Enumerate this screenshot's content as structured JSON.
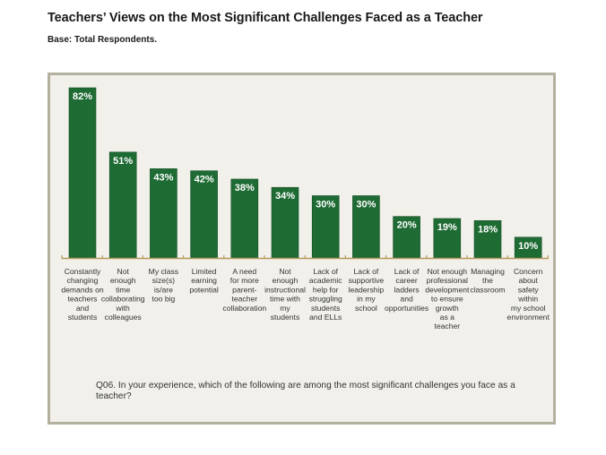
{
  "header": {
    "title": "Teachers’ Views on the Most Significant Challenges Faced as a Teacher",
    "subtitle": "Base: Total Respondents."
  },
  "footer": {
    "question": "Q06. In your experience, which of the following are among the most significant challenges you face as a teacher?"
  },
  "colors": {
    "bar": "#1e6b34",
    "bar_edge": "#174f28",
    "axis": "#b79a5d",
    "panel_bg": "#f1f0ea",
    "panel_border": "#b3b09e"
  },
  "chart_data": {
    "type": "bar",
    "categories": [
      [
        "Constantly",
        "changing",
        "demands on",
        "teachers",
        "and",
        "students"
      ],
      [
        "Not",
        "enough",
        "time",
        "collaborating",
        "with",
        "colleagues"
      ],
      [
        "My class",
        "size(s)",
        "is/are",
        "too big"
      ],
      [
        "Limited",
        "earning",
        "potential"
      ],
      [
        "A need",
        "for more",
        "parent-",
        "teacher",
        "collaboration"
      ],
      [
        "Not",
        "enough",
        "instructional",
        "time with",
        "my",
        "students"
      ],
      [
        "Lack of",
        "academic",
        "help for",
        "struggling",
        "students",
        "and ELLs"
      ],
      [
        "Lack of",
        "supportive",
        "leadership",
        "in my",
        "school"
      ],
      [
        "Lack of",
        "career",
        "ladders",
        "and",
        "opportunities"
      ],
      [
        "Not enough",
        "professional",
        "development",
        "to ensure",
        "growth",
        "as a",
        "teacher"
      ],
      [
        "Managing",
        "the",
        "classroom"
      ],
      [
        "Concern",
        "about",
        "safety",
        "within",
        "my school",
        "environment"
      ]
    ],
    "values": [
      82,
      51,
      43,
      42,
      38,
      34,
      30,
      30,
      20,
      19,
      18,
      10
    ],
    "value_labels": [
      "82%",
      "51%",
      "43%",
      "42%",
      "38%",
      "34%",
      "30%",
      "30%",
      "20%",
      "19%",
      "18%",
      "10%"
    ],
    "ylim": [
      0,
      82
    ]
  }
}
